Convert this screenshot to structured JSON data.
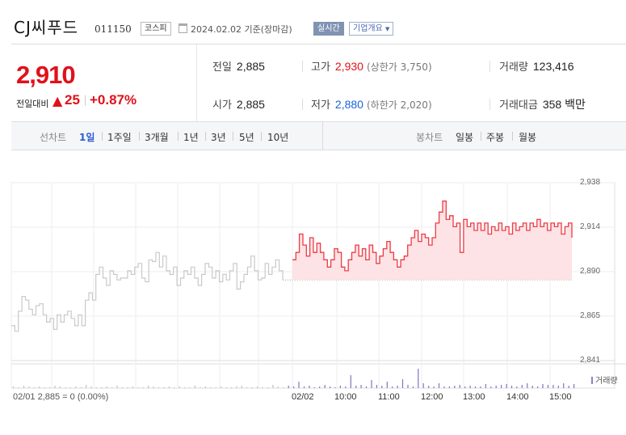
{
  "header": {
    "title": "CJ씨푸드",
    "code": "011150",
    "market": "코스피",
    "date": "2024.02.02 기준(장마감)",
    "live": "실시간",
    "company": "기업개요"
  },
  "quote": {
    "price": "2,910",
    "change_label": "전일대비",
    "change_arrow": "▲",
    "change_value": "25",
    "change_pct": "+0.87%",
    "prev_label": "전일",
    "prev": "2,885",
    "high_label": "고가",
    "high": "2,930",
    "upper_limit": "(상한가 3,750)",
    "volume_label": "거래량",
    "volume": "123,416",
    "open_label": "시가",
    "open": "2,885",
    "low_label": "저가",
    "low": "2,880",
    "lower_limit": "(하한가 2,020)",
    "amount_label": "거래대금",
    "amount": "358 백만"
  },
  "periods": {
    "line_label": "선차트",
    "line": [
      "1일",
      "1주일",
      "3개월",
      "1년",
      "3년",
      "5년",
      "10년"
    ],
    "selected": "1일",
    "candle_label": "봉차트",
    "candle": [
      "일봉",
      "주봉",
      "월봉"
    ]
  },
  "chart_data": {
    "type": "line",
    "title": "",
    "y_ticks": [
      "2,938",
      "2,914",
      "2,890",
      "2,865",
      "2,841"
    ],
    "ylim": [
      2841,
      2938
    ],
    "x_ticks": [
      "02/02",
      "10:00",
      "11:00",
      "12:00",
      "13:00",
      "14:00",
      "15:00"
    ],
    "reference_price": 2885,
    "series": [
      {
        "values": [
          2860,
          2857,
          2868,
          2876,
          2874,
          2869,
          2866,
          2871,
          2872,
          2866,
          2862,
          2864,
          2858,
          2866,
          2862,
          2866,
          2868,
          2864,
          2860,
          2866,
          2860,
          2874,
          2878,
          2874,
          2888,
          2892,
          2886,
          2882,
          2890,
          2888,
          2885,
          2886,
          2886,
          2890,
          2888,
          2892,
          2894,
          2886,
          2884,
          2896,
          2895,
          2900,
          2892,
          2898,
          2890,
          2888,
          2892,
          2882,
          2886,
          2890,
          2888,
          2892,
          2886,
          2882,
          2888,
          2894,
          2892,
          2886,
          2890,
          2884,
          2888,
          2885,
          2890,
          2894,
          2880,
          2884,
          2888,
          2892,
          2898,
          2890,
          2885,
          2886,
          2894,
          2888,
          2892,
          2896,
          2890,
          2885
        ]
      },
      {
        "values": [
          2896,
          2900,
          2910,
          2904,
          2898,
          2908,
          2900,
          2905,
          2900,
          2896,
          2892,
          2896,
          2902,
          2900,
          2892,
          2890,
          2896,
          2900,
          2904,
          2898,
          2902,
          2896,
          2904,
          2900,
          2894,
          2898,
          2902,
          2906,
          2900,
          2896,
          2892,
          2896,
          2898,
          2904,
          2908,
          2912,
          2906,
          2910,
          2908,
          2904,
          2908,
          2916,
          2922,
          2928,
          2918,
          2920,
          2914,
          2916,
          2900,
          2918,
          2914,
          2916,
          2912,
          2916,
          2912,
          2916,
          2910,
          2914,
          2912,
          2916,
          2912,
          2914,
          2910,
          2916,
          2912,
          2914,
          2916,
          2912,
          2916,
          2914,
          2918,
          2914,
          2916,
          2912,
          2916,
          2914,
          2916,
          2910,
          2914,
          2916,
          2908
        ]
      }
    ],
    "volume_label": "거래량",
    "volume": [
      2,
      1,
      3,
      2,
      1,
      2,
      1,
      1,
      3,
      2,
      1,
      1,
      2,
      1,
      4,
      2,
      1,
      1,
      2,
      1,
      3,
      1,
      1,
      2,
      1,
      1,
      3,
      2,
      1,
      1,
      2,
      1,
      2,
      1,
      1,
      3,
      1,
      2,
      1,
      1,
      2,
      1,
      1,
      2,
      3,
      1,
      1,
      2,
      1,
      1,
      4,
      2,
      1,
      3,
      2,
      8,
      2,
      3,
      1,
      2,
      4,
      2,
      1,
      3,
      2,
      16,
      3,
      4,
      2,
      10,
      4,
      3,
      8,
      2,
      3,
      11,
      4,
      2,
      24,
      6,
      3,
      2,
      6,
      2,
      2,
      3,
      4,
      2,
      3,
      2,
      2,
      5,
      2,
      3,
      4,
      5,
      3,
      2,
      4,
      6,
      3,
      2,
      5,
      4,
      4,
      3,
      6,
      3,
      5
    ]
  },
  "footer": {
    "prev_info": "02/01  2,885 = 0 (0.00%)"
  }
}
